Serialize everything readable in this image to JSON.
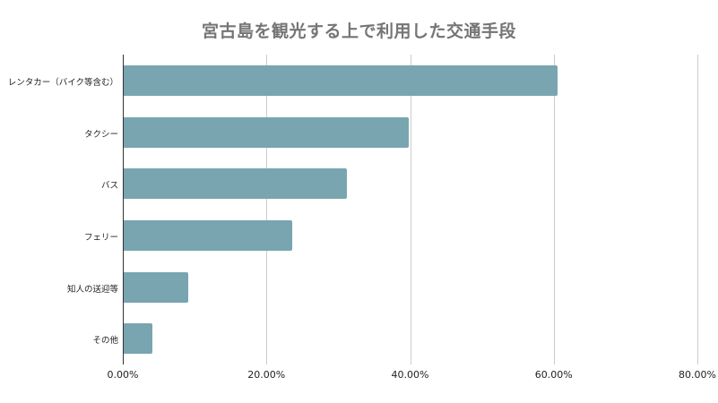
{
  "chart_data": {
    "type": "bar",
    "orientation": "horizontal",
    "title": "宮古島を観光する上で利用した交通手段",
    "xlabel": "",
    "ylabel": "",
    "categories": [
      "レンタカー（バイク等含む）",
      "タクシー",
      "バス",
      "フェリー",
      "知人の送迎等",
      "その他"
    ],
    "values": [
      60.5,
      39.8,
      31.2,
      23.6,
      9.1,
      4.1
    ],
    "value_unit": "%",
    "xlim": [
      0,
      80
    ],
    "x_ticks": [
      "0.00%",
      "20.00%",
      "40.00%",
      "60.00%",
      "80.00%"
    ],
    "grid": true,
    "legend": null,
    "bar_color": "#78a5b0"
  },
  "colors": {
    "bar": "#78a5b0",
    "title": "#757575",
    "grid": "#cccccc",
    "axis": "#333333"
  }
}
